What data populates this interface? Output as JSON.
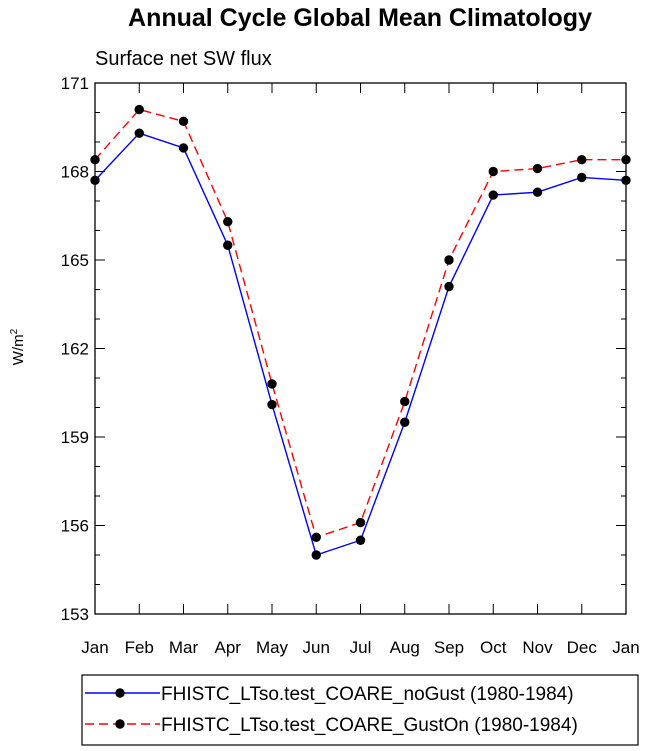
{
  "chart_data": {
    "type": "line",
    "title": "Annual Cycle Global Mean Climatology",
    "subtitle": "Surface net SW flux",
    "xlabel": "",
    "ylabel": "W/m",
    "ylabel_superscript": "2",
    "categories": [
      "Jan",
      "Feb",
      "Mar",
      "Apr",
      "May",
      "Jun",
      "Jul",
      "Aug",
      "Sep",
      "Oct",
      "Nov",
      "Dec",
      "Jan"
    ],
    "ylim": [
      153,
      171
    ],
    "yticks": [
      153,
      156,
      159,
      162,
      165,
      168,
      171
    ],
    "yminor_step": 1,
    "grid": false,
    "legend_position": "bottom",
    "series": [
      {
        "name": "FHISTC_LTso.test_COARE_noGust (1980-1984)",
        "color": "#0000ff",
        "dash": "solid",
        "values": [
          167.7,
          169.3,
          168.8,
          165.5,
          160.1,
          155.0,
          155.5,
          159.5,
          164.1,
          167.2,
          167.3,
          167.8,
          167.7
        ]
      },
      {
        "name": "FHISTC_LTso.test_COARE_GustOn (1980-1984)",
        "color": "#ff0000",
        "dash": "dashed",
        "values": [
          168.4,
          170.1,
          169.7,
          166.3,
          160.8,
          155.6,
          156.1,
          160.2,
          165.0,
          168.0,
          168.1,
          168.4,
          168.4
        ]
      }
    ]
  }
}
